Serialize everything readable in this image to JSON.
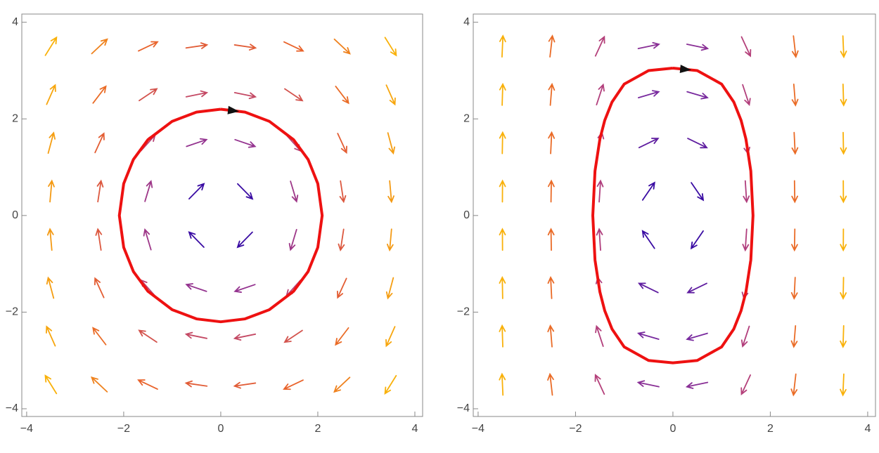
{
  "chart_data": [
    {
      "type": "vector_field",
      "xlim": [
        -4.1,
        4.16
      ],
      "ylim": [
        -4.16,
        4.17
      ],
      "xticks": [
        {
          "value": -4,
          "label": "−4"
        },
        {
          "value": -2,
          "label": "−2"
        },
        0,
        2,
        4
      ],
      "yticks": [
        {
          "value": -4,
          "label": "−4"
        },
        {
          "value": -2,
          "label": "−2"
        },
        0,
        2,
        4
      ],
      "x": [
        -3.5,
        -2.5,
        -1.5,
        -0.5,
        0.5,
        1.5,
        2.5,
        3.5
      ],
      "y": [
        -3.5,
        -2.5,
        -1.5,
        -0.5,
        0.5,
        1.5,
        2.5,
        3.5
      ],
      "u": [
        [
          -3.5,
          -3.5,
          -3.5,
          -3.5,
          -3.5,
          -3.5,
          -3.5,
          -3.5
        ],
        [
          -2.5,
          -2.5,
          -2.5,
          -2.5,
          -2.5,
          -2.5,
          -2.5,
          -2.5
        ],
        [
          -1.5,
          -1.5,
          -1.5,
          -1.5,
          -1.5,
          -1.5,
          -1.5,
          -1.5
        ],
        [
          -0.5,
          -0.5,
          -0.5,
          -0.5,
          -0.5,
          -0.5,
          -0.5,
          -0.5
        ],
        [
          0.5,
          0.5,
          0.5,
          0.5,
          0.5,
          0.5,
          0.5,
          0.5
        ],
        [
          1.5,
          1.5,
          1.5,
          1.5,
          1.5,
          1.5,
          1.5,
          1.5
        ],
        [
          2.5,
          2.5,
          2.5,
          2.5,
          2.5,
          2.5,
          2.5,
          2.5
        ],
        [
          3.5,
          3.5,
          3.5,
          3.5,
          3.5,
          3.5,
          3.5,
          3.5
        ]
      ],
      "v": [
        [
          5.64,
          3.28,
          1.67,
          0.51,
          -0.51,
          -1.67,
          -3.28,
          -5.64
        ],
        [
          5.64,
          3.28,
          1.67,
          0.51,
          -0.51,
          -1.67,
          -3.28,
          -5.64
        ],
        [
          5.64,
          3.28,
          1.67,
          0.51,
          -0.51,
          -1.67,
          -3.28,
          -5.64
        ],
        [
          5.64,
          3.28,
          1.67,
          0.51,
          -0.51,
          -1.67,
          -3.28,
          -5.64
        ],
        [
          5.64,
          3.28,
          1.67,
          0.51,
          -0.51,
          -1.67,
          -3.28,
          -5.64
        ],
        [
          5.64,
          3.28,
          1.67,
          0.51,
          -0.51,
          -1.67,
          -3.28,
          -5.64
        ],
        [
          5.64,
          3.28,
          1.67,
          0.51,
          -0.51,
          -1.67,
          -3.28,
          -5.64
        ],
        [
          5.64,
          3.28,
          1.67,
          0.51,
          -0.51,
          -1.67,
          -3.28,
          -5.64
        ]
      ],
      "colormap": [
        "#3a0ca3",
        "#7b2a9e",
        "#b5407a",
        "#e8602c",
        "#f9b10a"
      ],
      "orbit_x": [
        0,
        0.5,
        1,
        1.5,
        1.8,
        2,
        2.09,
        2,
        1.8,
        1.5,
        1,
        0.5,
        0,
        -0.5,
        -1,
        -1.5,
        -1.8,
        -2,
        -2.09,
        -2,
        -1.8,
        -1.5,
        -1,
        -0.5,
        0
      ],
      "orbit_y": [
        2.2,
        2.14,
        1.95,
        1.57,
        1.16,
        0.66,
        0,
        -0.66,
        -1.16,
        -1.57,
        -1.95,
        -2.14,
        -2.2,
        -2.14,
        -1.95,
        -1.57,
        -1.16,
        -0.66,
        0,
        0.66,
        1.16,
        1.57,
        1.95,
        2.14,
        2.2
      ],
      "orbit_color": "#ee1111"
    },
    {
      "type": "vector_field",
      "xlim": [
        -4.1,
        4.16
      ],
      "ylim": [
        -4.16,
        4.17
      ],
      "xticks": [
        {
          "value": -4,
          "label": "−4"
        },
        {
          "value": -2,
          "label": "−2"
        },
        0,
        2,
        4
      ],
      "yticks": [
        {
          "value": -4,
          "label": "−4"
        },
        {
          "value": -2,
          "label": "−2"
        },
        0,
        2,
        4
      ],
      "x": [
        -3.5,
        -2.5,
        -1.5,
        -0.5,
        0.5,
        1.5,
        2.5,
        3.5
      ],
      "y": [
        -3.5,
        -2.5,
        -1.5,
        -0.5,
        0.5,
        1.5,
        2.5,
        3.5
      ],
      "u": [
        [
          -3.5,
          -3.5,
          -3.5,
          -3.5,
          -3.5,
          -3.5,
          -3.5,
          -3.5
        ],
        [
          -2.5,
          -2.5,
          -2.5,
          -2.5,
          -2.5,
          -2.5,
          -2.5,
          -2.5
        ],
        [
          -1.5,
          -1.5,
          -1.5,
          -1.5,
          -1.5,
          -1.5,
          -1.5,
          -1.5
        ],
        [
          -0.5,
          -0.5,
          -0.5,
          -0.5,
          -0.5,
          -0.5,
          -0.5,
          -0.5
        ],
        [
          0.5,
          0.5,
          0.5,
          0.5,
          0.5,
          0.5,
          0.5,
          0.5
        ],
        [
          1.5,
          1.5,
          1.5,
          1.5,
          1.5,
          1.5,
          1.5,
          1.5
        ],
        [
          2.5,
          2.5,
          2.5,
          2.5,
          2.5,
          2.5,
          2.5,
          2.5
        ],
        [
          3.5,
          3.5,
          3.5,
          3.5,
          3.5,
          3.5,
          3.5,
          3.5
        ]
      ],
      "v": [
        [
          80.68,
          30.63,
          7.58,
          0.73,
          -0.73,
          -7.58,
          -30.63,
          -80.68
        ],
        [
          80.68,
          30.63,
          7.58,
          0.73,
          -0.73,
          -7.58,
          -30.63,
          -80.68
        ],
        [
          80.68,
          30.63,
          7.58,
          0.73,
          -0.73,
          -7.58,
          -30.63,
          -80.68
        ],
        [
          80.68,
          30.63,
          7.58,
          0.73,
          -0.73,
          -7.58,
          -30.63,
          -80.68
        ],
        [
          80.68,
          30.63,
          7.58,
          0.73,
          -0.73,
          -7.58,
          -30.63,
          -80.68
        ],
        [
          80.68,
          30.63,
          7.58,
          0.73,
          -0.73,
          -7.58,
          -30.63,
          -80.68
        ],
        [
          80.68,
          30.63,
          7.58,
          0.73,
          -0.73,
          -7.58,
          -30.63,
          -80.68
        ],
        [
          80.68,
          30.63,
          7.58,
          0.73,
          -0.73,
          -7.58,
          -30.63,
          -80.68
        ]
      ],
      "colormap": [
        "#3a0ca3",
        "#7b2a9e",
        "#b5407a",
        "#e8602c",
        "#f9b10a"
      ],
      "orbit_x": [
        0,
        0.5,
        1,
        1.25,
        1.4,
        1.5,
        1.6,
        1.645,
        1.6,
        1.5,
        1.4,
        1.25,
        1,
        0.5,
        0,
        -0.5,
        -1,
        -1.25,
        -1.4,
        -1.5,
        -1.6,
        -1.645,
        -1.6,
        -1.5,
        -1.4,
        -1.25,
        -1,
        -0.5,
        0
      ],
      "orbit_y": [
        3.05,
        3.0,
        2.72,
        2.35,
        1.97,
        1.58,
        0.92,
        0,
        -0.92,
        -1.58,
        -1.97,
        -2.35,
        -2.72,
        -3.0,
        -3.05,
        -3.0,
        -2.72,
        -2.35,
        -1.97,
        -1.58,
        -0.92,
        0,
        0.92,
        1.58,
        1.97,
        2.35,
        2.72,
        3.0,
        3.05
      ],
      "orbit_color": "#ee1111"
    }
  ]
}
